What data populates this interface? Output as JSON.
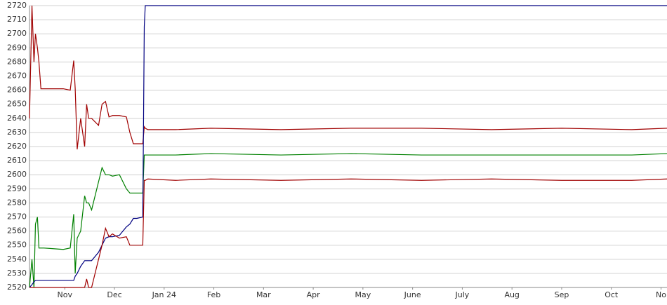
{
  "chart_data": {
    "type": "line",
    "x": [
      0.29,
      0.34,
      0.38,
      0.41,
      0.45,
      0.48,
      0.52,
      0.58,
      0.97,
      1.11,
      1.18,
      1.21,
      1.25,
      1.32,
      1.4,
      1.44,
      1.48,
      1.54,
      1.68,
      1.75,
      1.82,
      1.89,
      1.96,
      2.1,
      2.24,
      2.31,
      2.38,
      2.45,
      2.57,
      2.6,
      2.62,
      2.67,
      3.23,
      3.94,
      5.35,
      6.76,
      8.18,
      9.59,
      11.0,
      12.41,
      13.12
    ],
    "xlim": [
      0.29,
      13.12
    ],
    "xticks": [
      {
        "value": 1,
        "label": "Nov"
      },
      {
        "value": 2,
        "label": "Dec"
      },
      {
        "value": 3,
        "label": "Jan 24"
      },
      {
        "value": 4,
        "label": "Feb"
      },
      {
        "value": 5,
        "label": "Mar"
      },
      {
        "value": 6,
        "label": "Apr"
      },
      {
        "value": 7,
        "label": "May"
      },
      {
        "value": 8,
        "label": "June"
      },
      {
        "value": 9,
        "label": "July"
      },
      {
        "value": 10,
        "label": "Aug"
      },
      {
        "value": 11,
        "label": "Sep"
      },
      {
        "value": 12,
        "label": "Oct"
      },
      {
        "value": 13,
        "label": "No"
      }
    ],
    "ylim": [
      2520,
      2720
    ],
    "yticks": [
      2520,
      2530,
      2540,
      2550,
      2560,
      2570,
      2580,
      2590,
      2600,
      2610,
      2620,
      2630,
      2640,
      2650,
      2660,
      2670,
      2680,
      2690,
      2700,
      2710,
      2720
    ],
    "grid": true,
    "series": [
      {
        "color": "#a00000",
        "values": [
          2640,
          2720,
          2680,
          2700,
          2690,
          2680,
          2661,
          2661,
          2661,
          2660,
          2681,
          2661,
          2618,
          2640,
          2620,
          2650,
          2640,
          2640,
          2635,
          2650,
          2652,
          2641,
          2642,
          2642,
          2641,
          2630,
          2622,
          2622,
          2622,
          2634,
          2633,
          2632,
          2632,
          2633,
          2632,
          2633,
          2633,
          2632,
          2633,
          2632,
          2633
        ]
      },
      {
        "color": "#008000",
        "values": [
          2520,
          2540,
          2520,
          2565,
          2570,
          2548,
          2548,
          2548,
          2547,
          2548,
          2572,
          2530,
          2555,
          2560,
          2585,
          2580,
          2580,
          2575,
          2595,
          2605,
          2600,
          2600,
          2599,
          2600,
          2590,
          2587,
          2587,
          2587,
          2587,
          2614,
          2614,
          2614,
          2614,
          2615,
          2614,
          2615,
          2614,
          2614,
          2614,
          2614,
          2615
        ]
      },
      {
        "color": "#000080",
        "values": [
          2520,
          2522,
          2524,
          2525,
          2525,
          2525,
          2525,
          2525,
          2525,
          2525,
          2525,
          2528,
          2530,
          2535,
          2539,
          2539,
          2539,
          2539,
          2545,
          2550,
          2555,
          2556,
          2556,
          2557,
          2563,
          2565,
          2569,
          2569,
          2570,
          2705,
          2720,
          2720,
          2720,
          2720,
          2720,
          2720,
          2720,
          2720,
          2720,
          2720,
          2720
        ]
      },
      {
        "color": "#a00000",
        "values": [
          2520,
          2520,
          2520,
          2520,
          2520,
          2520,
          2520,
          2520,
          2520,
          2520,
          2520,
          2520,
          2520,
          2520,
          2520,
          2526,
          2520,
          2520,
          2540,
          2550,
          2562,
          2556,
          2558,
          2555,
          2556,
          2550,
          2550,
          2550,
          2550,
          2596,
          2596,
          2597,
          2596,
          2597,
          2596,
          2597,
          2596,
          2597,
          2596,
          2596,
          2597
        ]
      }
    ]
  }
}
